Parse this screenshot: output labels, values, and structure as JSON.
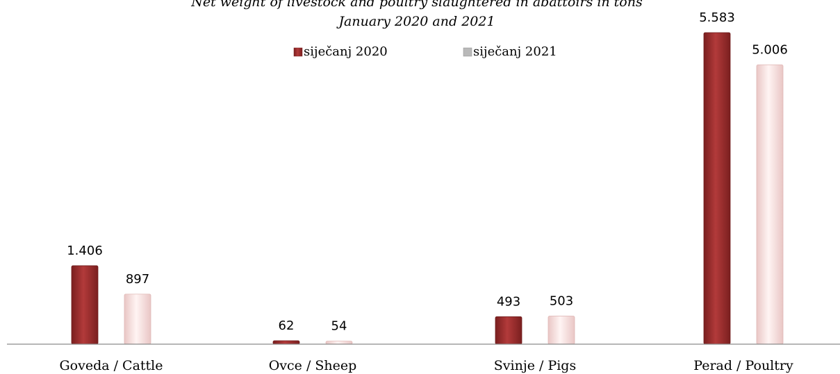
{
  "chart_data": {
    "type": "bar",
    "title": "Net weight of livestock and poultry slaughtered in abattoirs in tons",
    "subtitle": "January 2020 and 2021",
    "categories": [
      "Goveda / Cattle",
      "Ovce / Sheep",
      "Svinje / Pigs",
      "Perad / Poultry"
    ],
    "series": [
      {
        "name": "siječanj 2020",
        "values": [
          1406,
          62,
          493,
          5583
        ],
        "labels": [
          "1.406",
          "62",
          "493",
          "5.583"
        ],
        "color": "#a83232"
      },
      {
        "name": "siječanj 2021",
        "values": [
          897,
          54,
          503,
          5006
        ],
        "labels": [
          "897",
          "54",
          "503",
          "5.006"
        ],
        "color": "#fbe3e2"
      }
    ],
    "ylim": [
      0,
      5583
    ],
    "grid": false,
    "legend_position": "top-center",
    "value_format": "thousands separator '.'"
  }
}
